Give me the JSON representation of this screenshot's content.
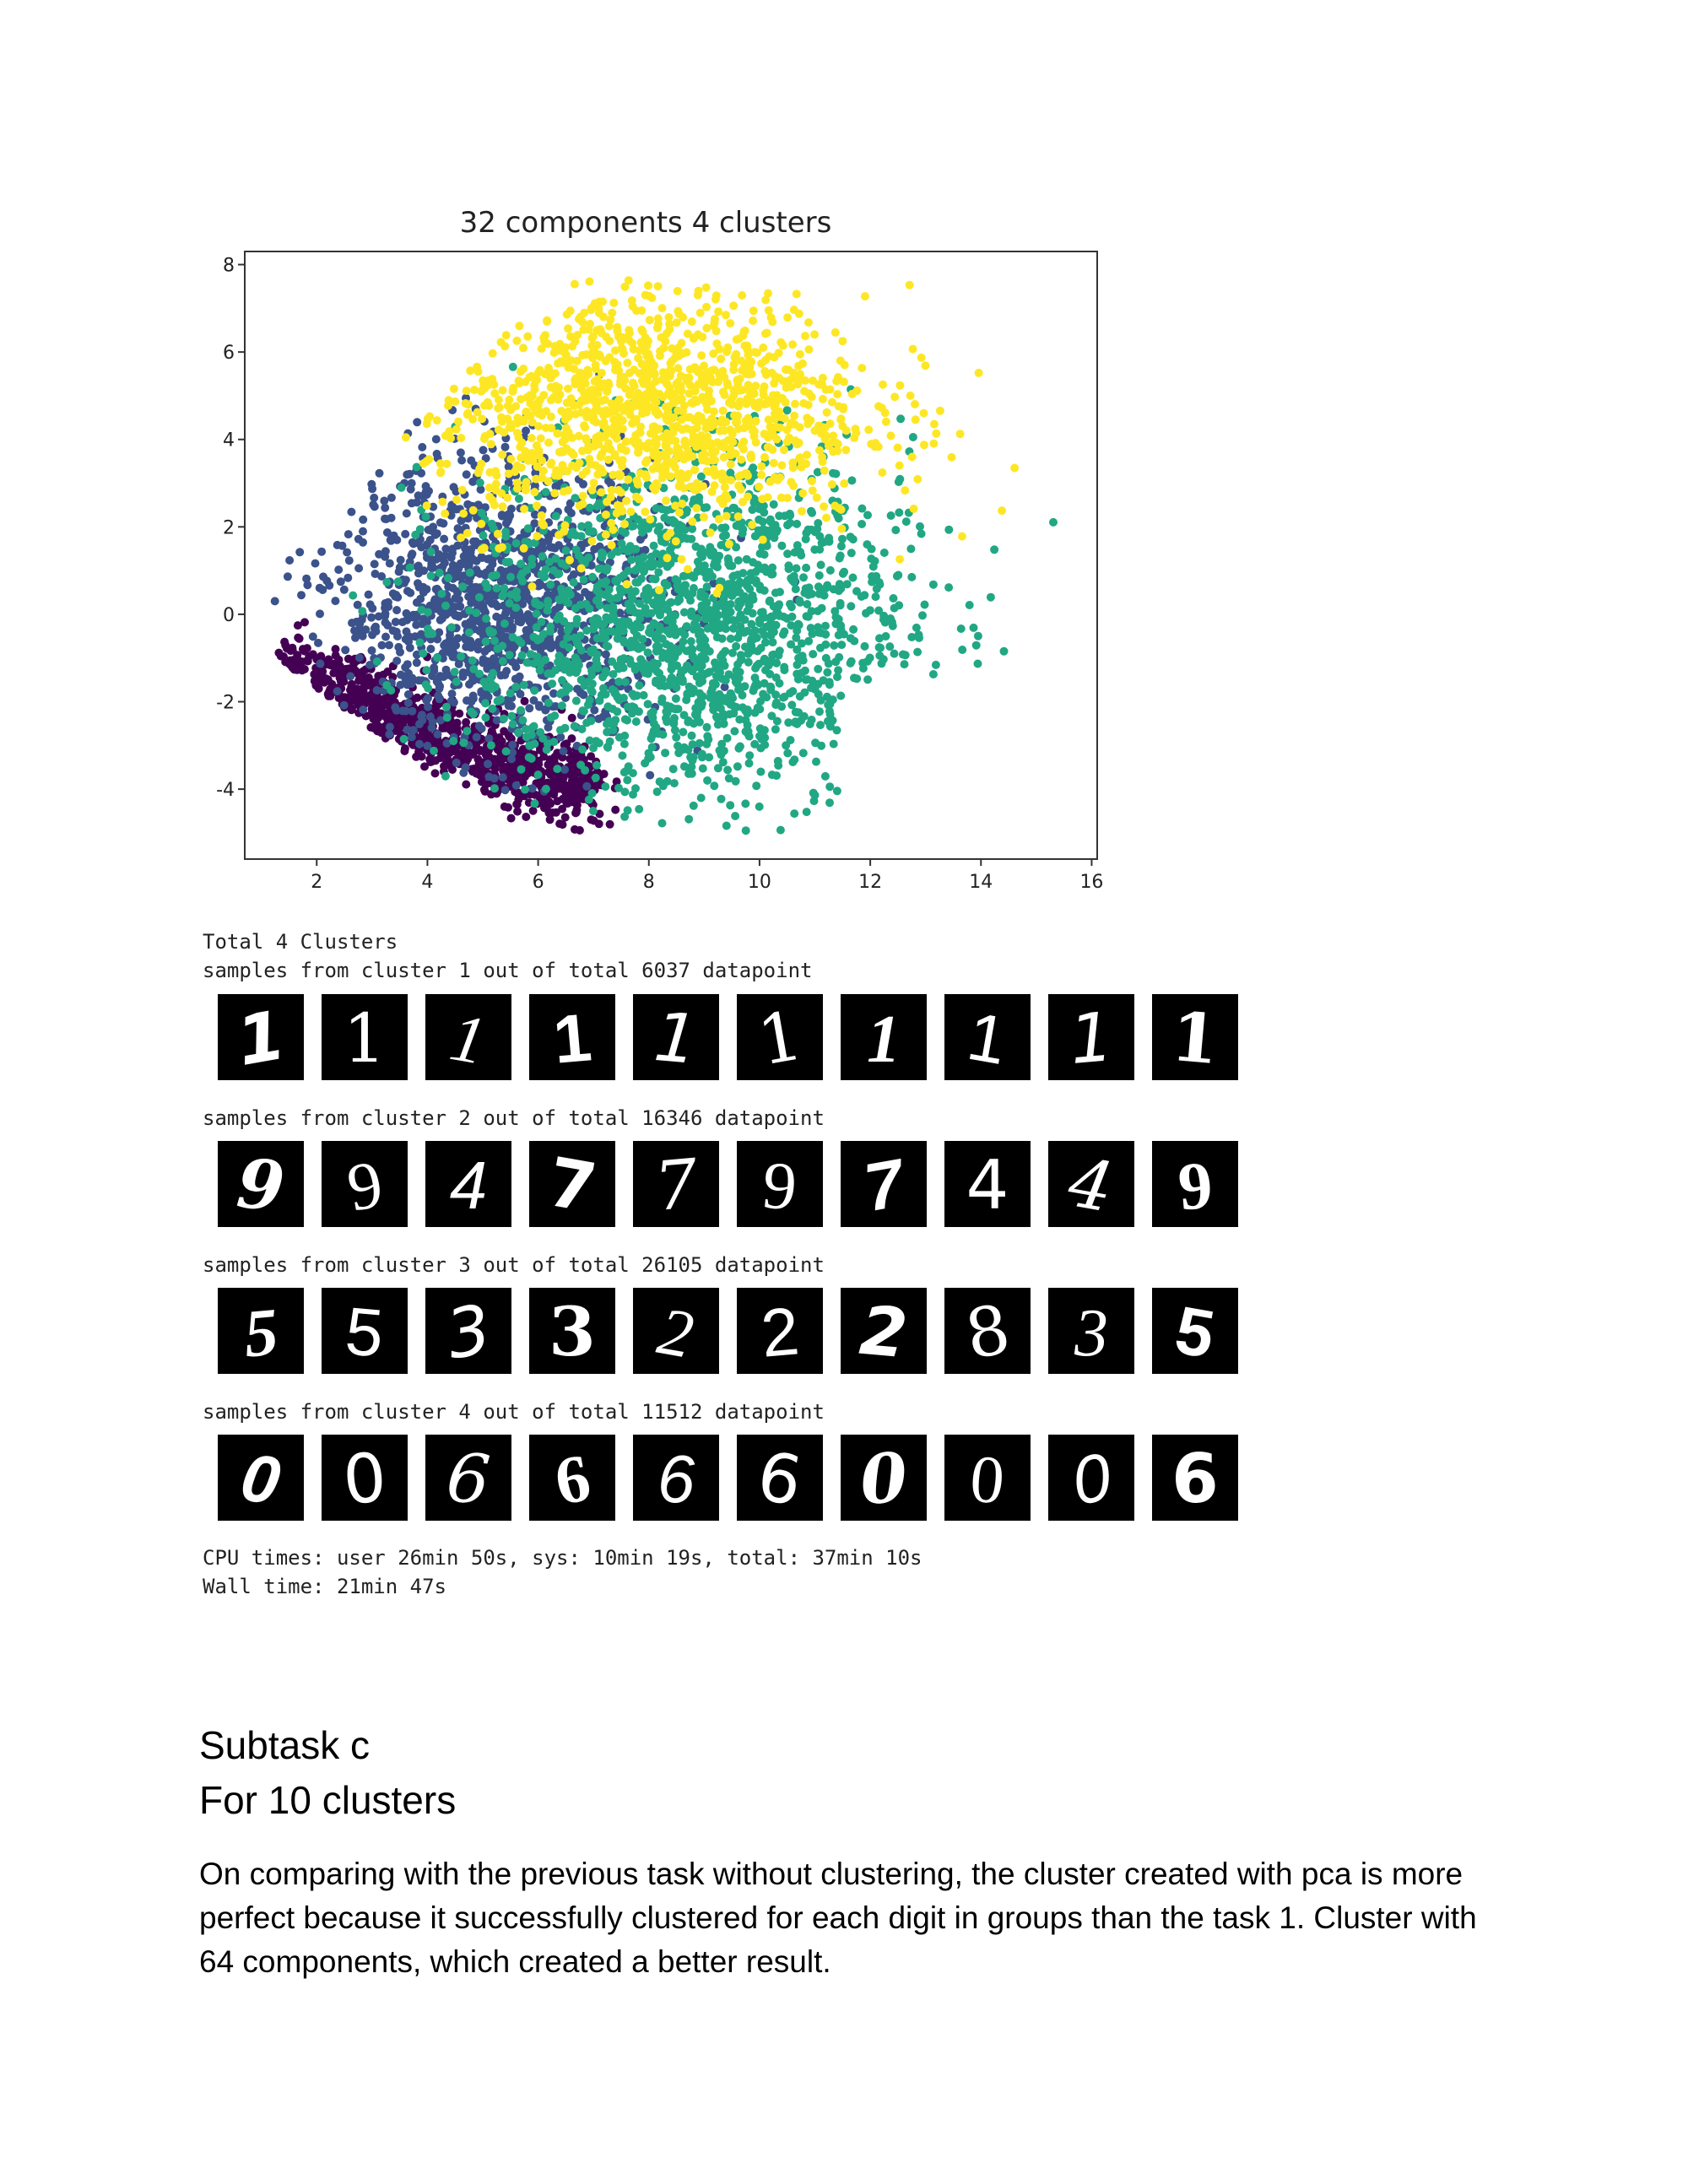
{
  "chart_data": {
    "type": "scatter",
    "title": "32 components 4 clusters",
    "xlabel": "",
    "ylabel": "",
    "xlim": [
      0.7,
      16.1
    ],
    "ylim": [
      -5.6,
      8.3
    ],
    "xticks": [
      2,
      4,
      6,
      8,
      10,
      12,
      14,
      16
    ],
    "yticks": [
      -4,
      -2,
      0,
      2,
      4,
      6,
      8
    ],
    "grid": false,
    "legend": "none",
    "clusters": [
      {
        "label": "1",
        "color": "#440154",
        "approx_center": [
          4.6,
          -2.7
        ],
        "approx_spread": [
          1.2,
          0.9
        ]
      },
      {
        "label": "2",
        "color": "#3b528b",
        "approx_center": [
          5.2,
          0.3
        ],
        "approx_spread": [
          1.6,
          1.6
        ]
      },
      {
        "label": "3",
        "color": "#21a784",
        "approx_center": [
          8.6,
          -0.4
        ],
        "approx_spread": [
          2.2,
          2.0
        ]
      },
      {
        "label": "4",
        "color": "#fde725",
        "approx_center": [
          8.0,
          4.6
        ],
        "approx_spread": [
          2.0,
          1.5
        ]
      }
    ]
  },
  "output": {
    "total_line": "Total 4 Clusters",
    "clusters": [
      {
        "line": "samples from cluster 1 out of total 6037 datapoint",
        "digits": [
          "1",
          "1",
          "1",
          "1",
          "1",
          "1",
          "1",
          "1",
          "1",
          "1"
        ]
      },
      {
        "line": "samples from cluster 2 out of total 16346 datapoint",
        "digits": [
          "9",
          "9",
          "4",
          "7",
          "7",
          "9",
          "7",
          "4",
          "4",
          "9"
        ]
      },
      {
        "line": "samples from cluster 3 out of total 26105 datapoint",
        "digits": [
          "5",
          "5",
          "3",
          "3",
          "2",
          "2",
          "2",
          "8",
          "3",
          "5"
        ]
      },
      {
        "line": "samples from cluster 4 out of total 11512 datapoint",
        "digits": [
          "0",
          "0",
          "6",
          "6",
          "6",
          "6",
          "0",
          "0",
          "0",
          "6"
        ]
      }
    ],
    "cpu_line": "CPU times: user 26min 50s, sys: 10min 19s, total: 37min 10s",
    "wall_line": "Wall time: 21min 47s"
  },
  "document": {
    "heading1": "Subtask c",
    "heading2": "For 10 clusters",
    "paragraph": "On comparing with the previous task without clustering, the cluster created with pca is more perfect because it successfully clustered for each digit in groups than the task 1. Cluster with 64 components, which created a better result."
  }
}
